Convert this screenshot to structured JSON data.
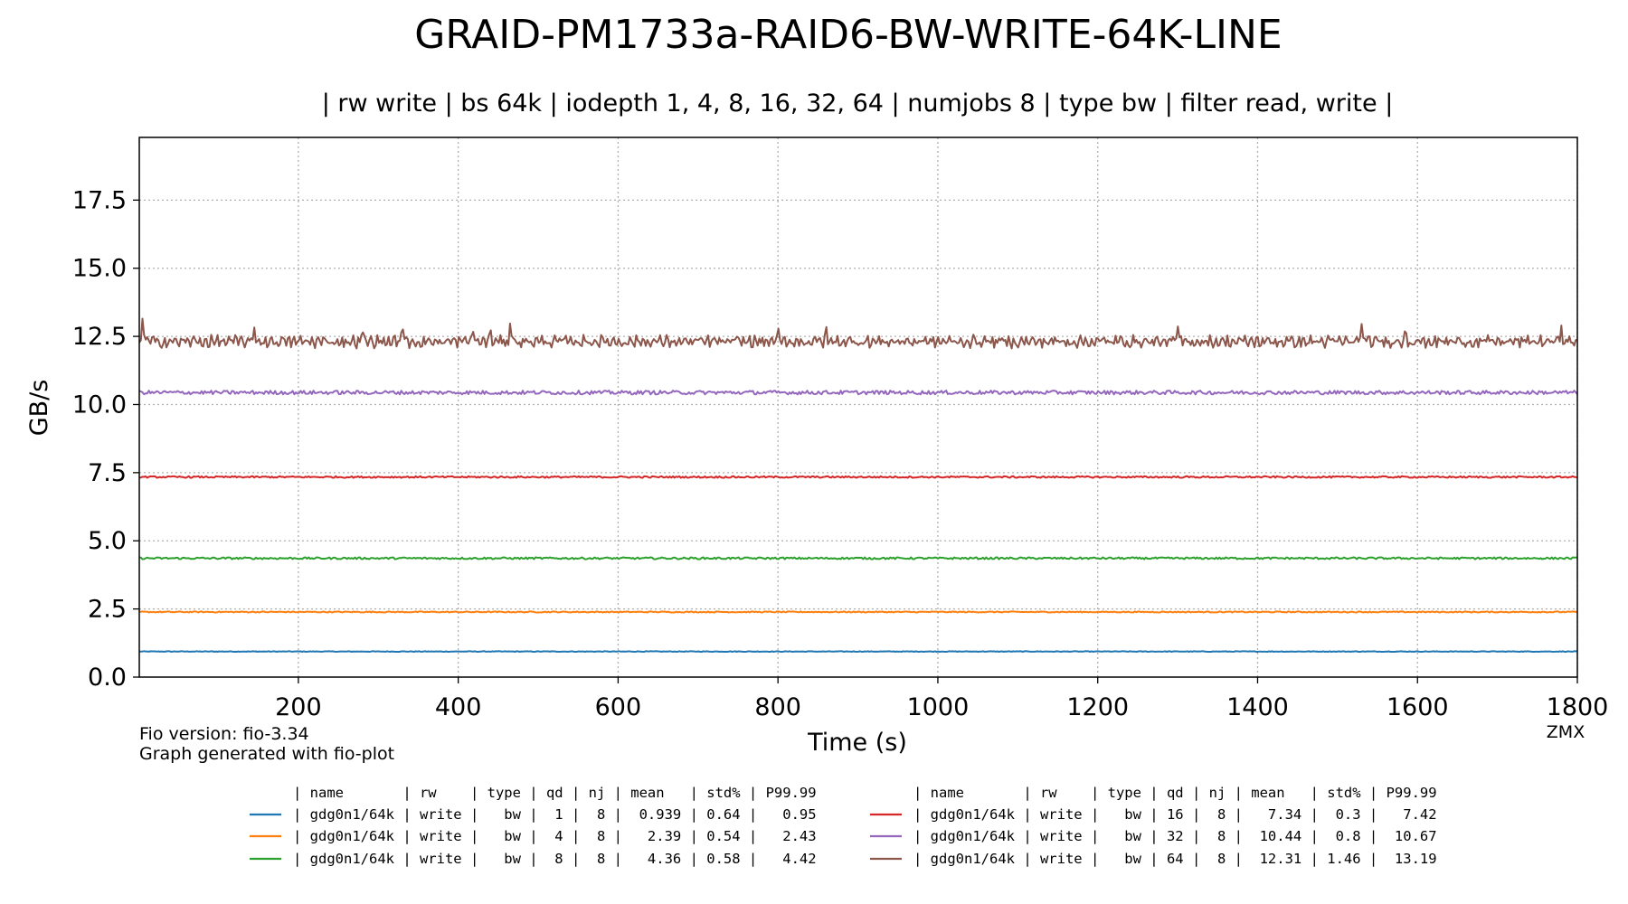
{
  "title": "GRAID-PM1733a-RAID6-BW-WRITE-64K-LINE",
  "subtitle": "| rw write | bs 64k | iodepth 1, 4, 8, 16, 32, 64 | numjobs 8 | type bw | filter read, write |",
  "footer": {
    "fio_version": "Fio version: fio-3.34",
    "generated_with": "Graph generated with fio-plot",
    "watermark": "ZMX"
  },
  "chart_data": {
    "type": "line",
    "xlabel": "Time (s)",
    "ylabel": "GB/s",
    "xlim": [
      1,
      1800
    ],
    "ylim": [
      0,
      19.8
    ],
    "xticks": [
      200,
      400,
      600,
      800,
      1000,
      1200,
      1400,
      1600,
      1800
    ],
    "xtick_labels": [
      "200",
      "400",
      "600",
      "800",
      "1000",
      "1200",
      "1400",
      "1600",
      "1800"
    ],
    "yticks": [
      0,
      2.5,
      5,
      7.5,
      10,
      12.5,
      15,
      17.5
    ],
    "ytick_labels": [
      "0.0",
      "2.5",
      "5.0",
      "7.5",
      "10.0",
      "12.5",
      "15.0",
      "17.5"
    ],
    "grid": true,
    "grid_style": "dotted",
    "series": [
      {
        "name": "gdg0n1/64k",
        "rw": "write",
        "type": "bw",
        "qd": 1,
        "nj": 8,
        "mean": 0.939,
        "std_pct": 0.64,
        "p9999": 0.95,
        "color": "#1f77b4",
        "noise": 0.012,
        "spikes": []
      },
      {
        "name": "gdg0n1/64k",
        "rw": "write",
        "type": "bw",
        "qd": 4,
        "nj": 8,
        "mean": 2.39,
        "std_pct": 0.54,
        "p9999": 2.43,
        "color": "#ff7f0e",
        "noise": 0.02,
        "spikes": []
      },
      {
        "name": "gdg0n1/64k",
        "rw": "write",
        "type": "bw",
        "qd": 8,
        "nj": 8,
        "mean": 4.36,
        "std_pct": 0.58,
        "p9999": 4.42,
        "color": "#2ca02c",
        "noise": 0.035,
        "spikes": []
      },
      {
        "name": "gdg0n1/64k",
        "rw": "write",
        "type": "bw",
        "qd": 16,
        "nj": 8,
        "mean": 7.34,
        "std_pct": 0.3,
        "p9999": 7.42,
        "color": "#d62728",
        "noise": 0.03,
        "spikes": []
      },
      {
        "name": "gdg0n1/64k",
        "rw": "write",
        "type": "bw",
        "qd": 32,
        "nj": 8,
        "mean": 10.44,
        "std_pct": 0.8,
        "p9999": 10.67,
        "color": "#9467bd",
        "noise": 0.07,
        "spikes": []
      },
      {
        "name": "gdg0n1/64k",
        "rw": "write",
        "type": "bw",
        "qd": 64,
        "nj": 8,
        "mean": 12.31,
        "std_pct": 1.46,
        "p9999": 13.19,
        "color": "#8c564b",
        "noise": 0.16,
        "spikes": [
          [
            5,
            13.15
          ],
          [
            145,
            12.85
          ],
          [
            280,
            12.9
          ],
          [
            330,
            13.0
          ],
          [
            418,
            12.9
          ],
          [
            440,
            12.95
          ],
          [
            465,
            13.05
          ],
          [
            800,
            12.95
          ],
          [
            860,
            13.0
          ],
          [
            1300,
            12.95
          ],
          [
            1530,
            13.0
          ],
          [
            1585,
            12.95
          ],
          [
            1780,
            12.9
          ]
        ]
      }
    ]
  },
  "legend": {
    "header": "| name       | rw    | type | qd | nj | mean   | std% | P99.99",
    "rows": [
      "| gdg0n1/64k | write |   bw |  1 |  8 |  0.939 | 0.64 |   0.95",
      "| gdg0n1/64k | write |   bw |  4 |  8 |   2.39 | 0.54 |   2.43",
      "| gdg0n1/64k | write |   bw |  8 |  8 |   4.36 | 0.58 |   4.42",
      "| gdg0n1/64k | write |   bw | 16 |  8 |   7.34 |  0.3 |   7.42",
      "| gdg0n1/64k | write |   bw | 32 |  8 |  10.44 |  0.8 |  10.67",
      "| gdg0n1/64k | write |   bw | 64 |  8 |  12.31 | 1.46 |  13.19"
    ]
  }
}
